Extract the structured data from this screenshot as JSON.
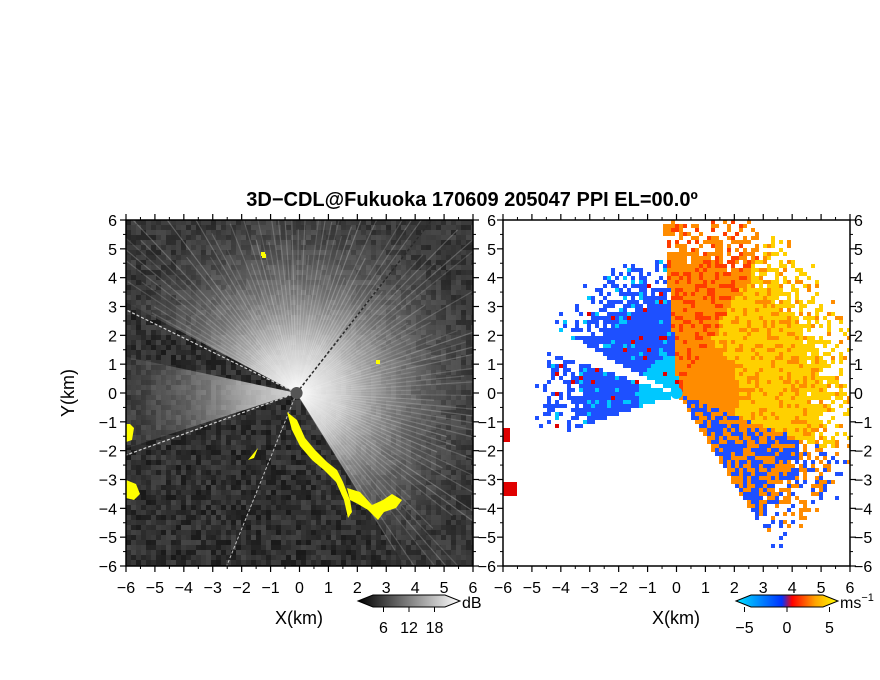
{
  "figure": {
    "title": "3D−CDL@Fukuoka 170609 205047 PPI EL=00.0º"
  },
  "chart_data": [
    {
      "type": "heatmap",
      "panel": "reflectivity",
      "xlabel": "X(km)",
      "ylabel": "Y(km)",
      "xlim": [
        -6,
        6
      ],
      "ylim": [
        -6,
        6
      ],
      "xticks": [
        "−6",
        "−5",
        "−4",
        "−3",
        "−2",
        "−1",
        "0",
        "1",
        "2",
        "3",
        "4",
        "5",
        "6"
      ],
      "yticks": [
        "−6",
        "−5",
        "−4",
        "−3",
        "−2",
        "−1",
        "0",
        "1",
        "2",
        "3",
        "4",
        "5",
        "6"
      ],
      "colorbar": {
        "unit": "dB",
        "ticks": [
          "6",
          "12",
          "18"
        ],
        "range": [
          0,
          24
        ],
        "colors": [
          "#000000",
          "#ffffff"
        ]
      },
      "highlight_color": "#ffff00",
      "beam_center": [
        -0.1,
        0
      ]
    },
    {
      "type": "heatmap",
      "panel": "doppler-velocity",
      "xlabel": "X(km)",
      "ylabel": "",
      "xlim": [
        -6,
        6
      ],
      "ylim": [
        -6,
        6
      ],
      "xticks": [
        "−6",
        "−5",
        "−4",
        "−3",
        "−2",
        "−1",
        "0",
        "1",
        "2",
        "3",
        "4",
        "5",
        "6"
      ],
      "yticks": [
        "−6",
        "−5",
        "−4",
        "−3",
        "−2",
        "−1",
        "0",
        "1",
        "2",
        "3",
        "4",
        "5",
        "6"
      ],
      "colorbar": {
        "unit": "ms",
        "unit_exponent": "−1",
        "ticks": [
          "−5",
          "0",
          "5"
        ],
        "range": [
          -6,
          6
        ],
        "colors": [
          "#00e5ff",
          "#0033ff",
          "#ff0000",
          "#ffa500",
          "#ffff00"
        ]
      },
      "velocity_colors": {
        "away_strong": "#ffd000",
        "away": "#ff8c00",
        "away_weak": "#ff3c00",
        "toward": "#1e50ff",
        "toward_strong": "#00c8ff",
        "folded": "#e00000"
      }
    }
  ]
}
